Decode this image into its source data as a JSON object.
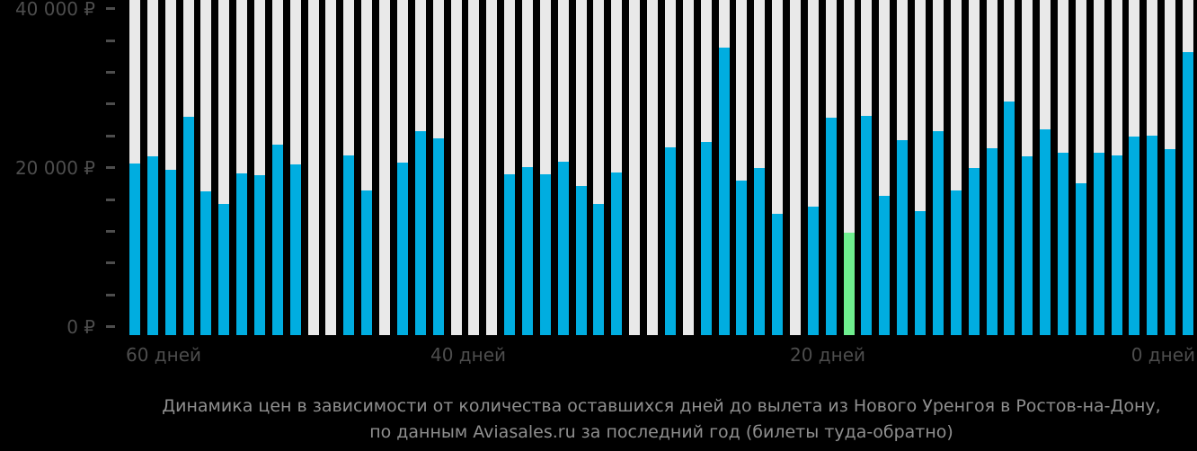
{
  "chart_data": {
    "type": "bar",
    "title": "Динамика цен в зависимости от количества оставшихся дней до вылета из Нового Уренгоя в Ростов-на-Дону,",
    "subtitle": "по данным Aviasales.ru за последний год (билеты туда-обратно)",
    "x_description": "дней до вылета, от 59 до 0",
    "x": [
      59,
      58,
      57,
      56,
      55,
      54,
      53,
      52,
      51,
      50,
      49,
      48,
      47,
      46,
      45,
      44,
      43,
      42,
      41,
      40,
      39,
      38,
      37,
      36,
      35,
      34,
      33,
      32,
      31,
      30,
      29,
      28,
      27,
      26,
      25,
      24,
      23,
      22,
      21,
      20,
      19,
      18,
      17,
      16,
      15,
      14,
      13,
      12,
      11,
      10,
      9,
      8,
      7,
      6,
      5,
      4,
      3,
      2,
      1,
      0
    ],
    "series": [
      {
        "name": "Цена билета туда-обратно, ₽",
        "values": [
          20500,
          21400,
          19800,
          26400,
          17000,
          15500,
          19300,
          19100,
          22900,
          20400,
          null,
          null,
          21500,
          17100,
          null,
          20600,
          24600,
          23700,
          null,
          null,
          null,
          19200,
          20100,
          19200,
          20800,
          17700,
          15500,
          19400,
          null,
          null,
          22600,
          null,
          23200,
          35100,
          18400,
          20000,
          14200,
          null,
          15100,
          26300,
          11800,
          26500,
          16500,
          23500,
          14600,
          24600,
          17100,
          20000,
          22500,
          28300,
          21400,
          24800,
          21900,
          18000,
          21900,
          21500,
          23900,
          24000,
          22300,
          34500
        ]
      }
    ],
    "highlighted_min": {
      "days_left": 19,
      "price": 11800
    },
    "ylim": [
      0,
      41150
    ],
    "y_tick_labels": [
      "40 000 ₽",
      "20 000 ₽",
      "0 ₽"
    ],
    "y_label_values": [
      40000,
      20000,
      0
    ],
    "y_minor_tick_step": 4000,
    "x_tick_labels": [
      "60 дней",
      "40 дней",
      "20 дней",
      "0 дней"
    ],
    "grid": false,
    "legend": false,
    "colors": {
      "bar": "#00ade0",
      "bar_highlight": "#6fee8e",
      "column_background": "#e9e9e9",
      "page_background": "#000000",
      "axis_text": "#4d4d4d",
      "title_text": "#8f8f8f"
    }
  }
}
